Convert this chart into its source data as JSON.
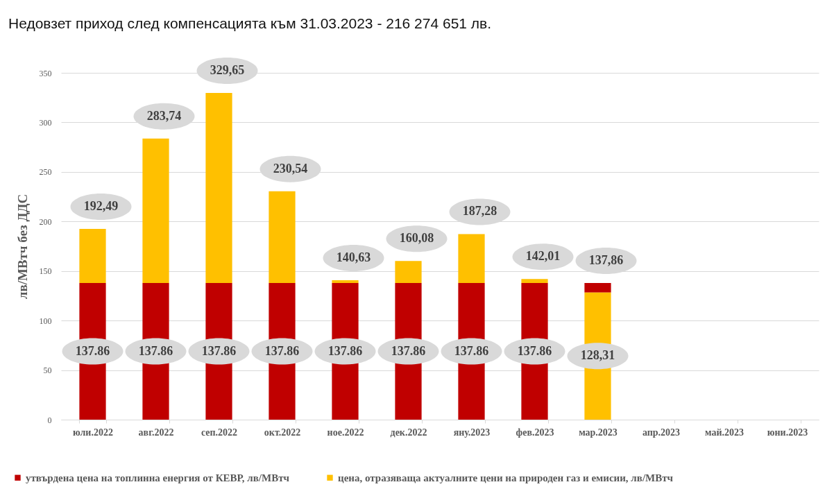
{
  "chart_data": {
    "type": "bar",
    "title": "Недовзет приход след компенсацията към 31.03.2023 - 216 274 651 лв.",
    "ylabel": "лв/МВтч без ДДС",
    "categories": [
      "юли.2022",
      "авг.2022",
      "сеп.2022",
      "окт.2022",
      "ное.2022",
      "дек.2022",
      "яну.2023",
      "фев.2023",
      "мар.2023",
      "апр.2023",
      "май.2023",
      "юни.2023"
    ],
    "stacked": true,
    "series": [
      {
        "color": "#ffc000",
        "values": [
          null,
          null,
          null,
          null,
          null,
          null,
          null,
          null,
          128.31,
          null,
          null,
          null
        ],
        "value_labels": [
          null,
          null,
          null,
          null,
          null,
          null,
          null,
          null,
          "128,31",
          null,
          null,
          null
        ]
      },
      {
        "name": "утвърдена цена на топлинна енергия от КЕВР, лв/МВтч",
        "color": "#c00000",
        "values": [
          137.86,
          137.86,
          137.86,
          137.86,
          137.86,
          137.86,
          137.86,
          137.86,
          9.55,
          null,
          null,
          null
        ],
        "value_labels": [
          "137.86",
          "137.86",
          "137.86",
          "137.86",
          "137.86",
          "137.86",
          "137.86",
          "137.86",
          null,
          null,
          null,
          null
        ]
      },
      {
        "name": "цена, отразяваща актуалните  цени на природен газ и емисии, лв/МВтч",
        "color": "#ffc000",
        "values": [
          54.63,
          145.88,
          191.79,
          92.68,
          2.77,
          22.22,
          49.42,
          4.15,
          null,
          null,
          null,
          null
        ]
      }
    ],
    "totals": [
      "192,49",
      "283,74",
      "329,65",
      "230,54",
      "140,63",
      "160,08",
      "187,28",
      "142,01",
      "137,86",
      null,
      null,
      null
    ],
    "ylim": [
      0,
      350
    ],
    "yticks": [
      0,
      50,
      100,
      150,
      200,
      250,
      300,
      350
    ],
    "grid": "y",
    "legend": "bottom"
  }
}
